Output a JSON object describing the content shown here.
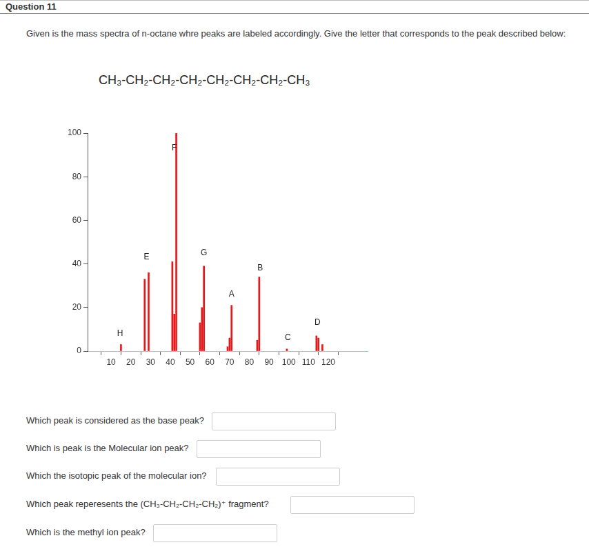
{
  "header": {
    "title": "Question 11"
  },
  "intro": "Given is the mass spectra of n-octane whre peaks are labeled accordingly. Give the letter that corresponds to the peak described below:",
  "formula": "CH₃-CH₂-CH₂-CH₂-CH₂-CH₂-CH₂-CH₃",
  "chart_data": {
    "type": "bar",
    "x": [
      15,
      27,
      29,
      41,
      42,
      43,
      55,
      56,
      57,
      69,
      70,
      71,
      84,
      85,
      99,
      114,
      115,
      117
    ],
    "values": [
      3,
      33,
      36,
      41,
      17,
      100,
      13,
      20,
      39,
      2,
      6,
      21,
      5,
      34,
      1,
      7,
      6,
      3
    ],
    "color": "#e31a1c",
    "xlim": [
      4,
      134
    ],
    "xticks": [
      10,
      20,
      30,
      40,
      50,
      60,
      70,
      80,
      90,
      100,
      110,
      120
    ],
    "ylim": [
      0,
      100
    ],
    "yticks": [
      0,
      20,
      40,
      60,
      80,
      100
    ],
    "grid": false,
    "annotations": [
      {
        "text": "H",
        "x": 14.5,
        "y": 8
      },
      {
        "text": "E",
        "x": 28,
        "y": 43
      },
      {
        "text": "F",
        "x": 42,
        "y": 93
      },
      {
        "text": "G",
        "x": 57,
        "y": 45
      },
      {
        "text": "A",
        "x": 71,
        "y": 26
      },
      {
        "text": "B",
        "x": 85.5,
        "y": 38
      },
      {
        "text": "C",
        "x": 99.5,
        "y": 6
      },
      {
        "text": "D",
        "x": 114.5,
        "y": 13
      }
    ]
  },
  "questions": [
    "Which peak is considered as the base peak?",
    "Which is peak is the Molecular ion peak?",
    "Which the isotopic peak of the molecular ion?",
    "Which peak reperesents the  (CH₃-CH₂-CH₂-CH₂)⁺ fragment?",
    "Which is the methyl ion peak?"
  ]
}
